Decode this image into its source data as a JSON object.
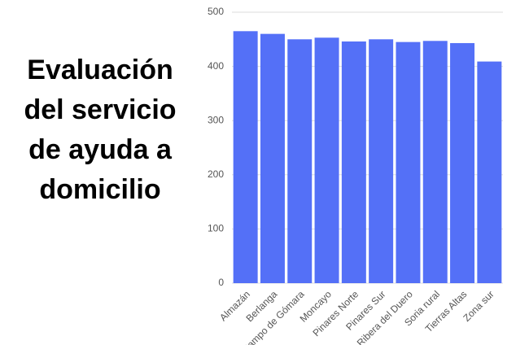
{
  "chart_data": {
    "type": "bar",
    "title": "Evaluación del servicio de ayuda a domicilio",
    "categories": [
      "Almazán",
      "Berlanga",
      "Campo de Gómara",
      "Moncayo",
      "Pinares Norte",
      "Pinares Sur",
      "Ribera del Duero",
      "Soria rural",
      "Tierras Altas",
      "Zona sur"
    ],
    "values": [
      465,
      460,
      450,
      453,
      446,
      450,
      445,
      447,
      443,
      409
    ],
    "color": "#5470f7",
    "ylim": [
      0,
      500
    ],
    "yticks": [
      0,
      100,
      200,
      300,
      400,
      500
    ],
    "grid": true
  }
}
